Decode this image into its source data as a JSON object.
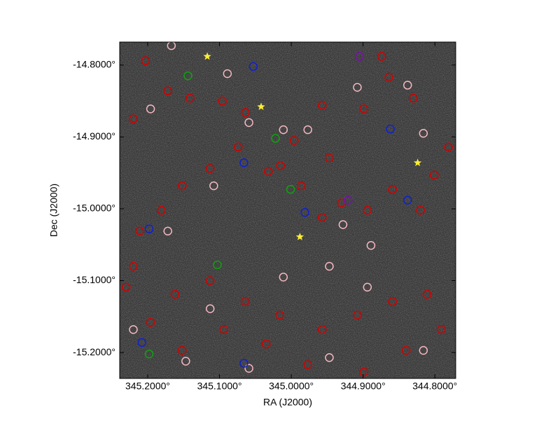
{
  "chart_data": {
    "type": "scatter",
    "xlabel": "RA (J2000)",
    "ylabel": "Dec (J2000)",
    "xlim": [
      345.239,
      344.771
    ],
    "ylim": [
      -15.236,
      -14.768
    ],
    "xticks": [
      {
        "value": 345.2,
        "label": "345.2000°"
      },
      {
        "value": 345.1,
        "label": "345.1000°"
      },
      {
        "value": 345.0,
        "label": "345.0000°"
      },
      {
        "value": 344.9,
        "label": "344.9000°"
      },
      {
        "value": 344.8,
        "label": "344.8000°"
      }
    ],
    "yticks": [
      {
        "value": -14.8,
        "label": "-14.8000°"
      },
      {
        "value": -14.9,
        "label": "-14.9000°"
      },
      {
        "value": -15.0,
        "label": "-15.0000°"
      },
      {
        "value": -15.1,
        "label": "-15.1000°"
      },
      {
        "value": -15.2,
        "label": "-15.2000°"
      }
    ],
    "background": "#3a3a3a",
    "series": [
      {
        "color": "#d40000",
        "marker": "circle",
        "x": [
          345.203,
          345.172,
          345.141,
          345.096,
          345.064,
          345.032,
          345.015,
          344.986,
          344.957,
          344.93,
          344.894,
          344.859,
          344.82,
          344.801,
          344.781,
          344.83,
          344.864,
          344.899,
          344.947,
          344.996,
          345.074,
          345.113,
          345.152,
          345.181,
          345.211,
          345.22,
          345.162,
          345.113,
          345.064,
          345.016,
          344.957,
          344.908,
          344.859,
          344.811,
          344.791,
          344.84,
          344.899,
          344.977,
          345.035,
          345.094,
          345.152,
          345.196,
          345.23,
          345.22,
          344.957,
          344.874
        ],
        "y": [
          -14.794,
          -14.836,
          -14.846,
          -14.85,
          -14.866,
          -14.948,
          -14.94,
          -14.968,
          -15.012,
          -14.992,
          -15.002,
          -14.973,
          -15.002,
          -14.953,
          -14.914,
          -14.846,
          -14.817,
          -14.861,
          -14.929,
          -14.905,
          -14.914,
          -14.944,
          -14.968,
          -15.002,
          -15.031,
          -15.08,
          -15.119,
          -15.1,
          -15.129,
          -15.148,
          -15.168,
          -15.148,
          -15.129,
          -15.119,
          -15.168,
          -15.197,
          -15.227,
          -15.217,
          -15.188,
          -15.168,
          -15.197,
          -15.158,
          -15.109,
          -14.875,
          -14.856,
          -14.788
        ]
      },
      {
        "color": "#f6b8c4",
        "marker": "circle",
        "x": [
          345.167,
          345.089,
          345.196,
          345.059,
          345.011,
          344.977,
          344.908,
          344.838,
          344.816,
          345.108,
          345.172,
          344.928,
          344.889,
          344.947,
          345.011,
          344.894,
          345.113,
          345.22,
          345.147,
          344.947,
          344.816,
          345.059
        ],
        "y": [
          -14.773,
          -14.812,
          -14.861,
          -14.88,
          -14.89,
          -14.89,
          -14.831,
          -14.828,
          -14.895,
          -14.968,
          -15.031,
          -15.022,
          -15.051,
          -15.08,
          -15.095,
          -15.109,
          -15.139,
          -15.168,
          -15.212,
          -15.207,
          -15.197,
          -15.222
        ]
      },
      {
        "color": "#1020d0",
        "marker": "circle",
        "x": [
          345.053,
          345.066,
          344.981,
          345.198,
          344.838,
          345.208,
          345.066,
          344.862
        ],
        "y": [
          -14.802,
          -14.936,
          -15.005,
          -15.028,
          -14.988,
          -15.186,
          -15.215,
          -14.889
        ]
      },
      {
        "color": "#10a010",
        "marker": "circle",
        "x": [
          345.144,
          345.022,
          345.001,
          345.103,
          345.198
        ],
        "y": [
          -14.815,
          -14.902,
          -14.973,
          -15.078,
          -15.202
        ]
      },
      {
        "color": "#7a10b0",
        "marker": "circle",
        "x": [
          344.905,
          344.921
        ],
        "y": [
          -14.788,
          -14.988
        ]
      },
      {
        "color": "#ffee33",
        "marker": "star",
        "x": [
          345.117,
          345.042,
          344.988,
          344.824
        ],
        "y": [
          -14.788,
          -14.858,
          -15.039,
          -14.936
        ]
      }
    ]
  }
}
